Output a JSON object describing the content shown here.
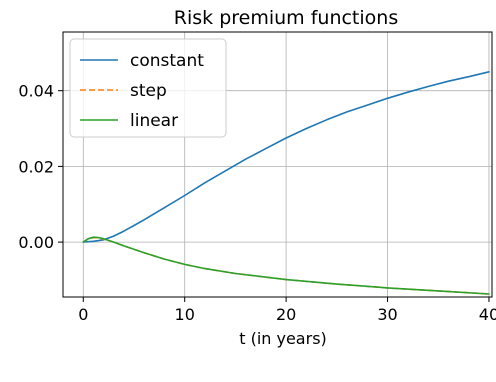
{
  "chart_data": {
    "type": "line",
    "title": "Risk premium functions",
    "xlabel": "t (in years)",
    "ylabel": "",
    "xlim": [
      -2,
      40.3
    ],
    "ylim": [
      -0.0145,
      0.0555
    ],
    "xticks": [
      0,
      10,
      20,
      30,
      40
    ],
    "xtick_labels": [
      "0",
      "10",
      "20",
      "30",
      "40"
    ],
    "yticks": [
      0.0,
      0.02,
      0.04
    ],
    "ytick_labels": [
      "0.00",
      "0.02",
      "0.04"
    ],
    "grid": true,
    "legend_position": "top-left",
    "series": [
      {
        "name": "constant",
        "color": "#1f77b4",
        "style": "solid",
        "x": [
          0,
          1,
          2,
          3,
          4,
          5,
          6,
          7,
          8,
          10,
          12,
          14,
          16,
          18,
          20,
          22,
          24,
          26,
          28,
          30,
          32,
          34,
          36,
          38,
          40
        ],
        "y": [
          0.0,
          0.0002,
          0.0006,
          0.0016,
          0.0029,
          0.0044,
          0.0059,
          0.0075,
          0.0091,
          0.0123,
          0.0157,
          0.0188,
          0.0219,
          0.0247,
          0.0275,
          0.03,
          0.0323,
          0.0344,
          0.0362,
          0.038,
          0.0396,
          0.0411,
          0.0425,
          0.0437,
          0.045
        ]
      },
      {
        "name": "step",
        "color": "#ff7f0e",
        "style": "dashed",
        "x": [
          0,
          0.5,
          1,
          1.5,
          2,
          3,
          4,
          6,
          8,
          10,
          12,
          15,
          20,
          25,
          30,
          35,
          40
        ],
        "y": [
          0.0,
          0.0009,
          0.0012,
          0.0011,
          0.0008,
          0.0,
          -0.001,
          -0.0028,
          -0.0045,
          -0.0059,
          -0.007,
          -0.0083,
          -0.0099,
          -0.0111,
          -0.0121,
          -0.0129,
          -0.0137
        ]
      },
      {
        "name": "linear",
        "color": "#2ca02c",
        "style": "solid",
        "x": [
          0,
          0.5,
          1,
          1.5,
          2,
          3,
          4,
          6,
          8,
          10,
          12,
          15,
          20,
          25,
          30,
          35,
          40
        ],
        "y": [
          0.0,
          0.0009,
          0.0013,
          0.0012,
          0.0009,
          0.0,
          -0.001,
          -0.0028,
          -0.0045,
          -0.0059,
          -0.007,
          -0.0083,
          -0.0099,
          -0.0111,
          -0.0121,
          -0.0129,
          -0.0137
        ]
      }
    ]
  }
}
